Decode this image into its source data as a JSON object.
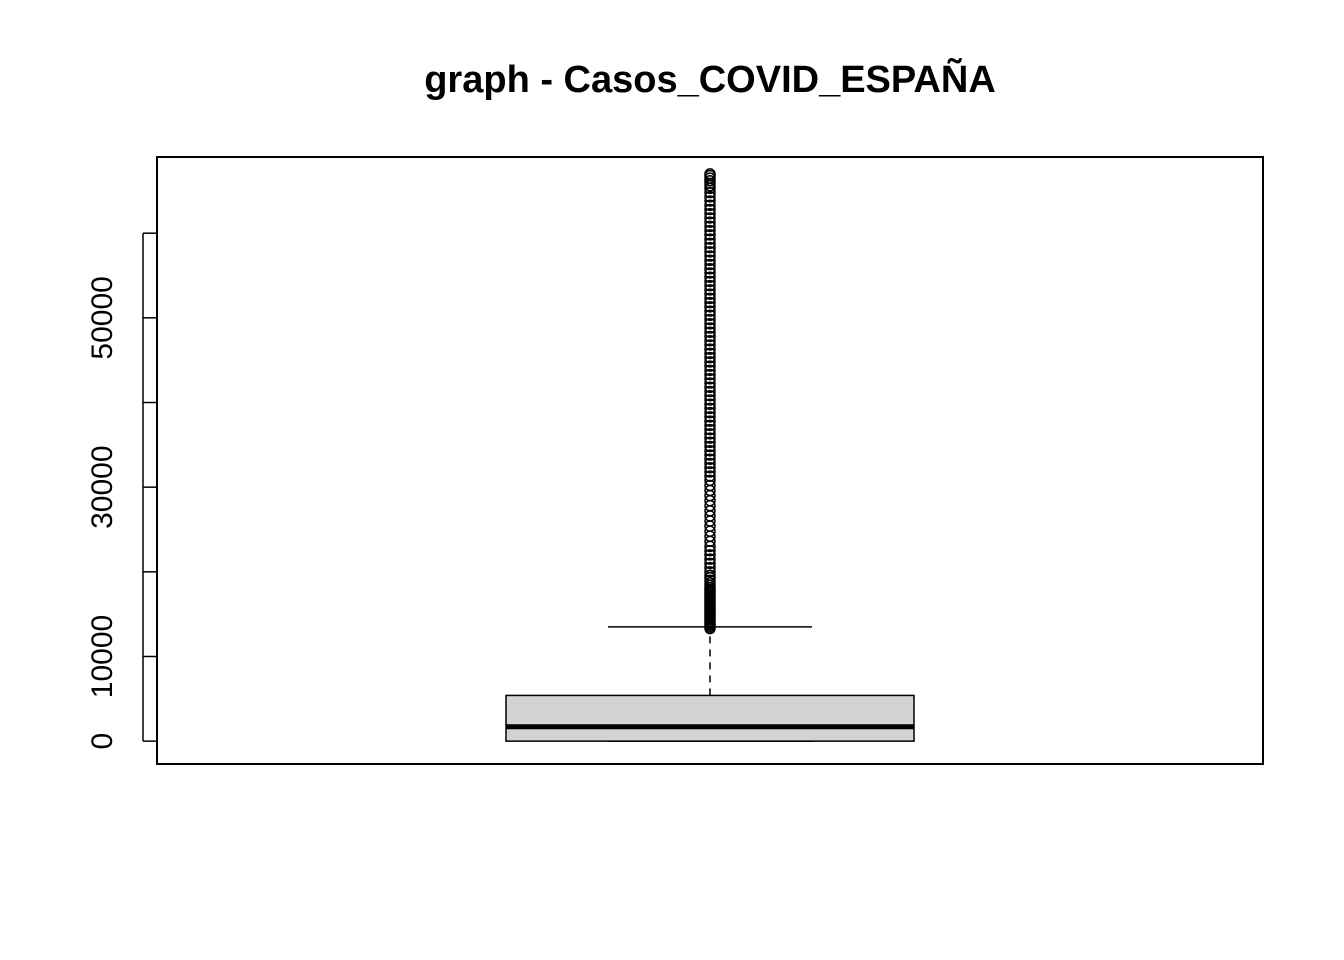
{
  "chart_data": {
    "type": "boxplot",
    "title": "graph - Casos_COVID_ESPAÑA",
    "xlabel": "",
    "ylabel": "",
    "ylim": [
      -2700,
      69000
    ],
    "yticks": [
      0,
      10000,
      20000,
      30000,
      40000,
      50000,
      60000
    ],
    "ytick_labels": [
      "0",
      "10000",
      "",
      "30000",
      "",
      "50000",
      ""
    ],
    "grid": false,
    "legend": "none",
    "box": {
      "min": 0,
      "q1": 0,
      "median": 1700,
      "q3": 5400,
      "whisker_low": 0,
      "whisker_high": 13500,
      "fill": "#d3d3d3"
    },
    "outliers": [
      13300,
      13500,
      13700,
      13900,
      14100,
      14300,
      14500,
      14700,
      14900,
      15100,
      15300,
      15500,
      15700,
      15900,
      16100,
      16300,
      16500,
      16700,
      16900,
      17100,
      17300,
      17500,
      17700,
      17900,
      18100,
      18400,
      18700,
      19000,
      19300,
      19600,
      20000,
      20500,
      21000,
      21500,
      22000,
      22500,
      23000,
      23600,
      24200,
      24800,
      25400,
      26000,
      26600,
      27200,
      27800,
      28400,
      29000,
      29600,
      30200,
      30800,
      31300,
      31800,
      32300,
      32800,
      33300,
      33800,
      34300,
      34800,
      35300,
      35800,
      36300,
      36800,
      37300,
      37800,
      38300,
      38800,
      39300,
      39800,
      40300,
      40800,
      41300,
      41800,
      42300,
      42800,
      43300,
      43800,
      44300,
      44800,
      45300,
      45800,
      46300,
      46800,
      47300,
      47800,
      48300,
      48800,
      49300,
      49800,
      50300,
      50800,
      51300,
      51800,
      52300,
      52800,
      53300,
      53800,
      54300,
      54800,
      55300,
      55800,
      56300,
      56800,
      57300,
      57800,
      58300,
      58800,
      59300,
      59800,
      60300,
      60800,
      61300,
      61800,
      62300,
      62800,
      63300,
      63800,
      64300,
      64800,
      65300,
      65600,
      65900,
      66200,
      66500,
      66800,
      67000
    ]
  }
}
